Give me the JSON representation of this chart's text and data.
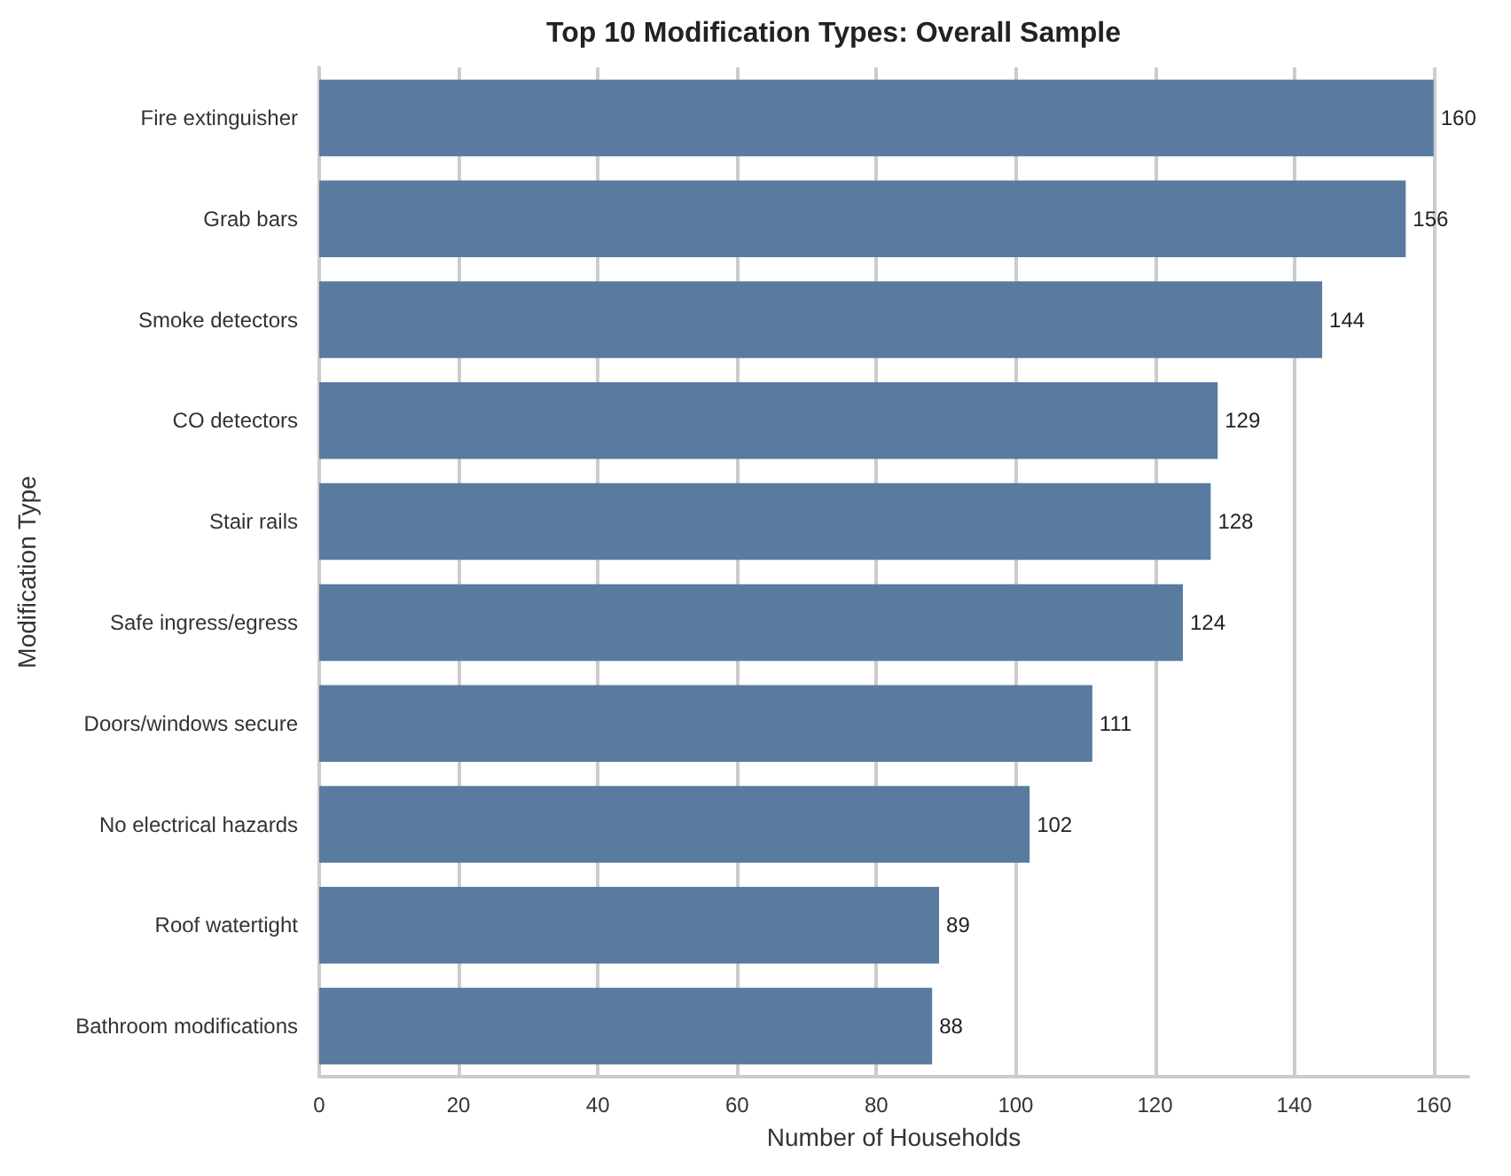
{
  "chart_data": {
    "type": "bar",
    "orientation": "horizontal",
    "title": "Top 10 Modification Types: Overall Sample",
    "xlabel": "Number of Households",
    "ylabel": "Modification Type",
    "categories": [
      "Fire extinguisher",
      "Grab bars",
      "Smoke detectors",
      "CO detectors",
      "Stair rails",
      "Safe ingress/egress",
      "Doors/windows secure",
      "No electrical hazards",
      "Roof watertight",
      "Bathroom modifications"
    ],
    "values": [
      160,
      156,
      144,
      129,
      128,
      124,
      111,
      102,
      89,
      88
    ],
    "color": "#5a7ba0",
    "xlim": [
      0,
      165
    ],
    "xticks": [
      0,
      20,
      40,
      60,
      80,
      100,
      120,
      140,
      160
    ],
    "grid": "x",
    "data_labels": true
  }
}
